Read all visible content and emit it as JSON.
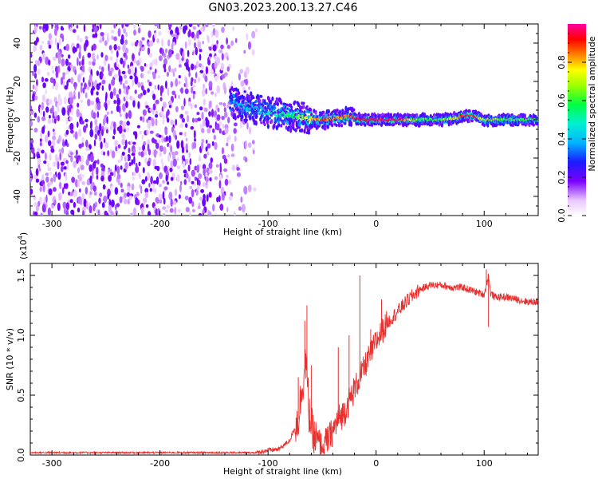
{
  "title": "GN03.2023.200.13.27.C46",
  "chart_data": [
    {
      "type": "heatmap",
      "xlabel": "Height of straight line (km)",
      "ylabel": "Frequency (Hz)",
      "xlim": [
        -320,
        150
      ],
      "ylim": [
        -50,
        50
      ],
      "xticks": [
        -300,
        -200,
        -100,
        0,
        100
      ],
      "yticks": [
        -40,
        -20,
        0,
        20,
        40
      ],
      "colorbar": {
        "label": "Normalized spectral amplitude",
        "range": [
          0,
          1
        ],
        "ticks": [
          "0.0",
          "0.2",
          "0.4",
          "0.6",
          "0.8"
        ],
        "tick_values": [
          0,
          0.2,
          0.4,
          0.6,
          0.8
        ]
      },
      "ridge": {
        "x": [
          -135,
          -120,
          -100,
          -80,
          -65,
          -55,
          -45,
          -35,
          -25,
          -15,
          0,
          20,
          40,
          60,
          75,
          80,
          90,
          100,
          120,
          150
        ],
        "freq": [
          9,
          7,
          4,
          2,
          1,
          0,
          0,
          1,
          2,
          0,
          0,
          0,
          0,
          0,
          1,
          2,
          2,
          0,
          0,
          0
        ],
        "amplitude": [
          0.35,
          0.4,
          0.45,
          0.55,
          0.7,
          0.85,
          0.9,
          0.85,
          0.9,
          0.95,
          1.0,
          1.0,
          0.6,
          0.6,
          0.8,
          0.95,
          0.9,
          0.7,
          0.6,
          0.6
        ]
      },
      "noise_region_x": [
        -320,
        -110
      ]
    },
    {
      "type": "line",
      "xlabel": "Height of straight line (km)",
      "ylabel": "SNR (10 * v/v)",
      "multiplier_label": "(x10",
      "multiplier_exp": "4",
      "multiplier_close": ")",
      "xlim": [
        -320,
        150
      ],
      "ylim": [
        0,
        1.6
      ],
      "xticks": [
        -300,
        -200,
        -100,
        0,
        100
      ],
      "yticks": [
        "0.0",
        "0.5",
        "1.0",
        "1.5"
      ],
      "ytick_values": [
        0,
        0.5,
        1.0,
        1.5
      ],
      "color": "#e8302e",
      "series": [
        {
          "x": [
            -320,
            -200,
            -110,
            -100,
            -90,
            -80,
            -72,
            -68,
            -65,
            -62,
            -58,
            -50,
            -45,
            -40,
            -35,
            -30,
            -25,
            -20,
            -15,
            -10,
            0,
            10,
            20,
            30,
            40,
            50,
            60,
            70,
            80,
            90,
            100,
            104,
            106,
            110,
            120,
            130,
            140,
            150
          ],
          "y": [
            0.02,
            0.02,
            0.02,
            0.04,
            0.05,
            0.12,
            0.3,
            0.6,
            0.8,
            0.35,
            0.15,
            0.08,
            0.12,
            0.2,
            0.3,
            0.35,
            0.45,
            0.55,
            0.65,
            0.75,
            0.95,
            1.1,
            1.2,
            1.3,
            1.38,
            1.42,
            1.42,
            1.4,
            1.4,
            1.37,
            1.34,
            1.5,
            1.35,
            1.32,
            1.32,
            1.3,
            1.28,
            1.28
          ]
        }
      ],
      "spikes": [
        {
          "x": -98,
          "y": 0.06
        },
        {
          "x": -72,
          "y": 0.65
        },
        {
          "x": -66,
          "y": 1.12
        },
        {
          "x": -64,
          "y": 1.25
        },
        {
          "x": -60,
          "y": 0.75
        },
        {
          "x": -35,
          "y": 0.9
        },
        {
          "x": -25,
          "y": 1.0
        },
        {
          "x": -15,
          "y": 1.5
        },
        {
          "x": -5,
          "y": 1.05
        },
        {
          "x": 5,
          "y": 1.3
        },
        {
          "x": 102,
          "y": 1.55
        },
        {
          "x": 104,
          "y": 1.07
        }
      ]
    }
  ]
}
